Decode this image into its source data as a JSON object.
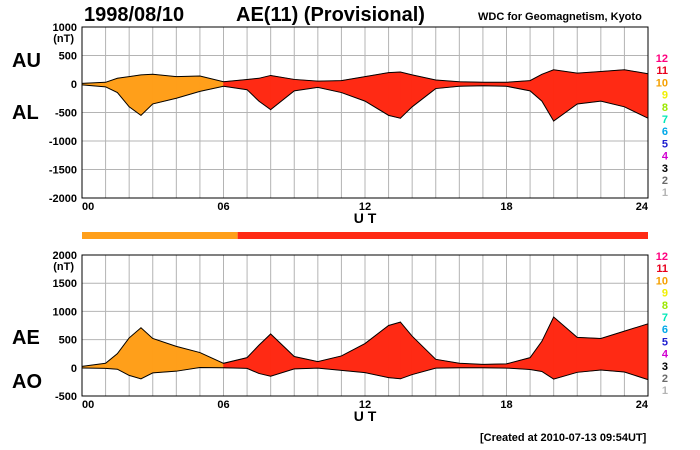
{
  "header": {
    "date": "1998/08/10",
    "title": "AE(11) (Provisional)",
    "source": "WDC for Geomagnetism, Kyoto"
  },
  "footer": {
    "created": "[Created at 2010-07-13 09:54UT]"
  },
  "labels": {
    "au": "AU",
    "al": "AL",
    "ae": "AE",
    "ao": "AO",
    "unit": "(nT)",
    "xlabel": "U T"
  },
  "colors": {
    "orange": "#ff9f1a",
    "red": "#ff2a14",
    "grid": "#b4b4b4",
    "legend": [
      "#ff007f",
      "#e8001c",
      "#f5a000",
      "#f0f000",
      "#9ce800",
      "#00e8b8",
      "#00a8e8",
      "#2020d0",
      "#d000d0",
      "#000000",
      "#6a6a6a",
      "#b4b4b4"
    ]
  },
  "legend": [
    "12",
    "11",
    "10",
    "9",
    "8",
    "7",
    "6",
    "5",
    "4",
    "3",
    "2",
    "1"
  ],
  "chart_data": [
    {
      "type": "area",
      "name": "AU/AL",
      "xlim": [
        0,
        24
      ],
      "ylim": [
        -2000,
        1000
      ],
      "yticks": [
        1000,
        500,
        0,
        -500,
        -1000,
        -1500,
        -2000
      ],
      "xticks": [
        "00",
        "06",
        "12",
        "18",
        "24"
      ],
      "x": [
        0,
        1,
        1.5,
        2,
        2.5,
        3,
        4,
        5,
        6,
        7,
        7.5,
        8,
        9,
        10,
        11,
        12,
        13,
        13.5,
        14,
        15,
        16,
        17,
        18,
        19,
        19.5,
        20,
        21,
        22,
        23,
        24
      ],
      "series": [
        {
          "name": "AU",
          "values": [
            10,
            30,
            100,
            130,
            160,
            170,
            130,
            140,
            40,
            80,
            100,
            150,
            80,
            50,
            60,
            130,
            200,
            210,
            160,
            70,
            40,
            30,
            30,
            60,
            170,
            250,
            190,
            220,
            250,
            180
          ]
        },
        {
          "name": "AL",
          "values": [
            -15,
            -50,
            -150,
            -400,
            -550,
            -350,
            -250,
            -130,
            -40,
            -100,
            -300,
            -450,
            -120,
            -60,
            -150,
            -300,
            -550,
            -600,
            -400,
            -80,
            -40,
            -30,
            -40,
            -120,
            -300,
            -650,
            -350,
            -300,
            -400,
            -600
          ]
        }
      ],
      "activity_level": [
        10,
        10,
        10,
        10,
        10,
        10,
        10,
        10,
        10,
        11,
        11,
        11,
        11,
        11,
        11,
        11,
        11,
        11,
        11,
        11,
        11,
        11,
        11,
        11,
        11,
        11,
        11,
        11,
        11,
        11
      ]
    },
    {
      "type": "area",
      "name": "AE/AO",
      "xlim": [
        0,
        24
      ],
      "ylim": [
        -500,
        2000
      ],
      "yticks": [
        2000,
        1500,
        1000,
        500,
        0,
        -500
      ],
      "xticks": [
        "00",
        "06",
        "12",
        "18",
        "24"
      ],
      "x": [
        0,
        1,
        1.5,
        2,
        2.5,
        3,
        4,
        5,
        6,
        7,
        7.5,
        8,
        9,
        10,
        11,
        12,
        13,
        13.5,
        14,
        15,
        16,
        17,
        18,
        19,
        19.5,
        20,
        21,
        22,
        23,
        24
      ],
      "series": [
        {
          "name": "AE",
          "values": [
            25,
            80,
            250,
            530,
            710,
            520,
            380,
            270,
            80,
            180,
            400,
            600,
            200,
            110,
            210,
            430,
            750,
            810,
            560,
            150,
            80,
            60,
            70,
            180,
            470,
            900,
            540,
            520,
            650,
            780
          ]
        },
        {
          "name": "AO",
          "values": [
            -3,
            -10,
            -25,
            -135,
            -195,
            -90,
            -60,
            5,
            0,
            -10,
            -100,
            -150,
            -20,
            -5,
            -45,
            -85,
            -175,
            -195,
            -120,
            -5,
            0,
            0,
            -5,
            -30,
            -65,
            -200,
            -80,
            -40,
            -75,
            -210
          ]
        }
      ],
      "activity_level": [
        10,
        10,
        10,
        10,
        10,
        10,
        10,
        10,
        10,
        11,
        11,
        11,
        11,
        11,
        11,
        11,
        11,
        11,
        11,
        11,
        11,
        11,
        11,
        11,
        11,
        11,
        11,
        11,
        11,
        11
      ]
    }
  ],
  "activity_bar": {
    "segments": [
      {
        "from": 0,
        "to": 6.6,
        "level": 10
      },
      {
        "from": 6.6,
        "to": 24,
        "level": 11
      }
    ]
  }
}
